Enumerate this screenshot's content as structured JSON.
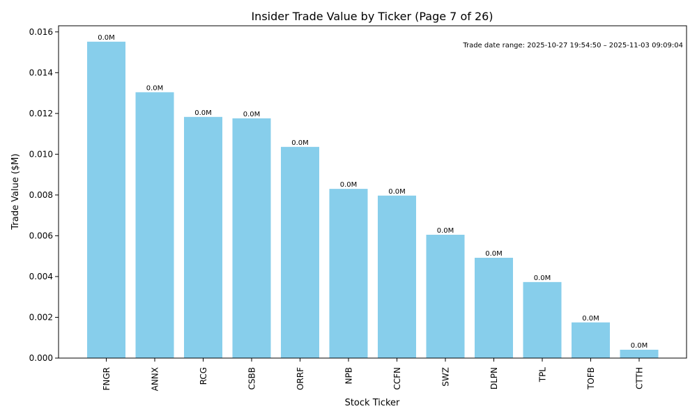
{
  "chart_data": {
    "type": "bar",
    "title": "Insider Trade Value by Ticker (Page 7 of 26)",
    "xlabel": "Stock Ticker",
    "ylabel": "Trade Value ($M)",
    "ylim": [
      0,
      0.0163
    ],
    "yticks": [
      "0.000",
      "0.002",
      "0.004",
      "0.006",
      "0.008",
      "0.010",
      "0.012",
      "0.014",
      "0.016"
    ],
    "ytick_values": [
      0,
      0.002,
      0.004,
      0.006,
      0.008,
      0.01,
      0.012,
      0.014,
      0.016
    ],
    "categories": [
      "FNGR",
      "ANNX",
      "RCG",
      "CSBB",
      "ORRF",
      "NPB",
      "CCFN",
      "SWZ",
      "DLPN",
      "TPL",
      "TOFB",
      "CTTH"
    ],
    "values": [
      0.01552,
      0.01304,
      0.01183,
      0.01176,
      0.01036,
      0.0083,
      0.00797,
      0.00605,
      0.00492,
      0.00373,
      0.00175,
      0.00041
    ],
    "data_labels": [
      "0.0M",
      "0.0M",
      "0.0M",
      "0.0M",
      "0.0M",
      "0.0M",
      "0.0M",
      "0.0M",
      "0.0M",
      "0.0M",
      "0.0M",
      "0.0M"
    ],
    "annotation": "Trade date range: 2025-10-27 19:54:50 – 2025-11-03 09:09:04",
    "bar_color": "#87ceeb",
    "grid": false,
    "legend": "none"
  }
}
